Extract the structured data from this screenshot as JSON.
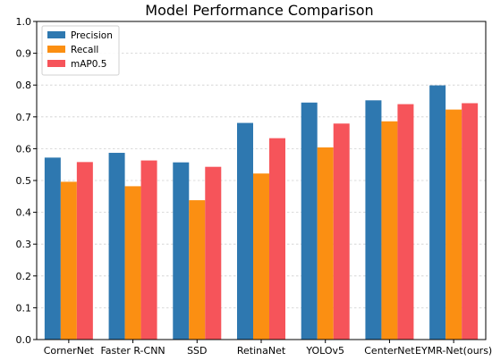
{
  "chart_data": {
    "type": "bar",
    "title": "Model Performance Comparison",
    "xlabel": "",
    "ylabel": "",
    "ylim": [
      0,
      1.0
    ],
    "yticks": [
      "0.0",
      "0.1",
      "0.2",
      "0.3",
      "0.4",
      "0.5",
      "0.6",
      "0.7",
      "0.8",
      "0.9",
      "1.0"
    ],
    "grid": "y-dashed",
    "legend_position": "top-left",
    "categories": [
      "CornerNet",
      "Faster R-CNN",
      "SSD",
      "RetinaNet",
      "YOLOv5",
      "CenterNet",
      "EYMR-Net(ours)"
    ],
    "series": [
      {
        "name": "Precision",
        "color": "#2e78b0",
        "values": [
          0.572,
          0.587,
          0.557,
          0.681,
          0.745,
          0.752,
          0.799
        ]
      },
      {
        "name": "Recall",
        "color": "#fb8f12",
        "values": [
          0.496,
          0.482,
          0.438,
          0.522,
          0.604,
          0.686,
          0.723
        ]
      },
      {
        "name": "mAP0.5",
        "color": "#f6545a",
        "values": [
          0.558,
          0.563,
          0.543,
          0.633,
          0.679,
          0.74,
          0.743
        ]
      }
    ]
  }
}
